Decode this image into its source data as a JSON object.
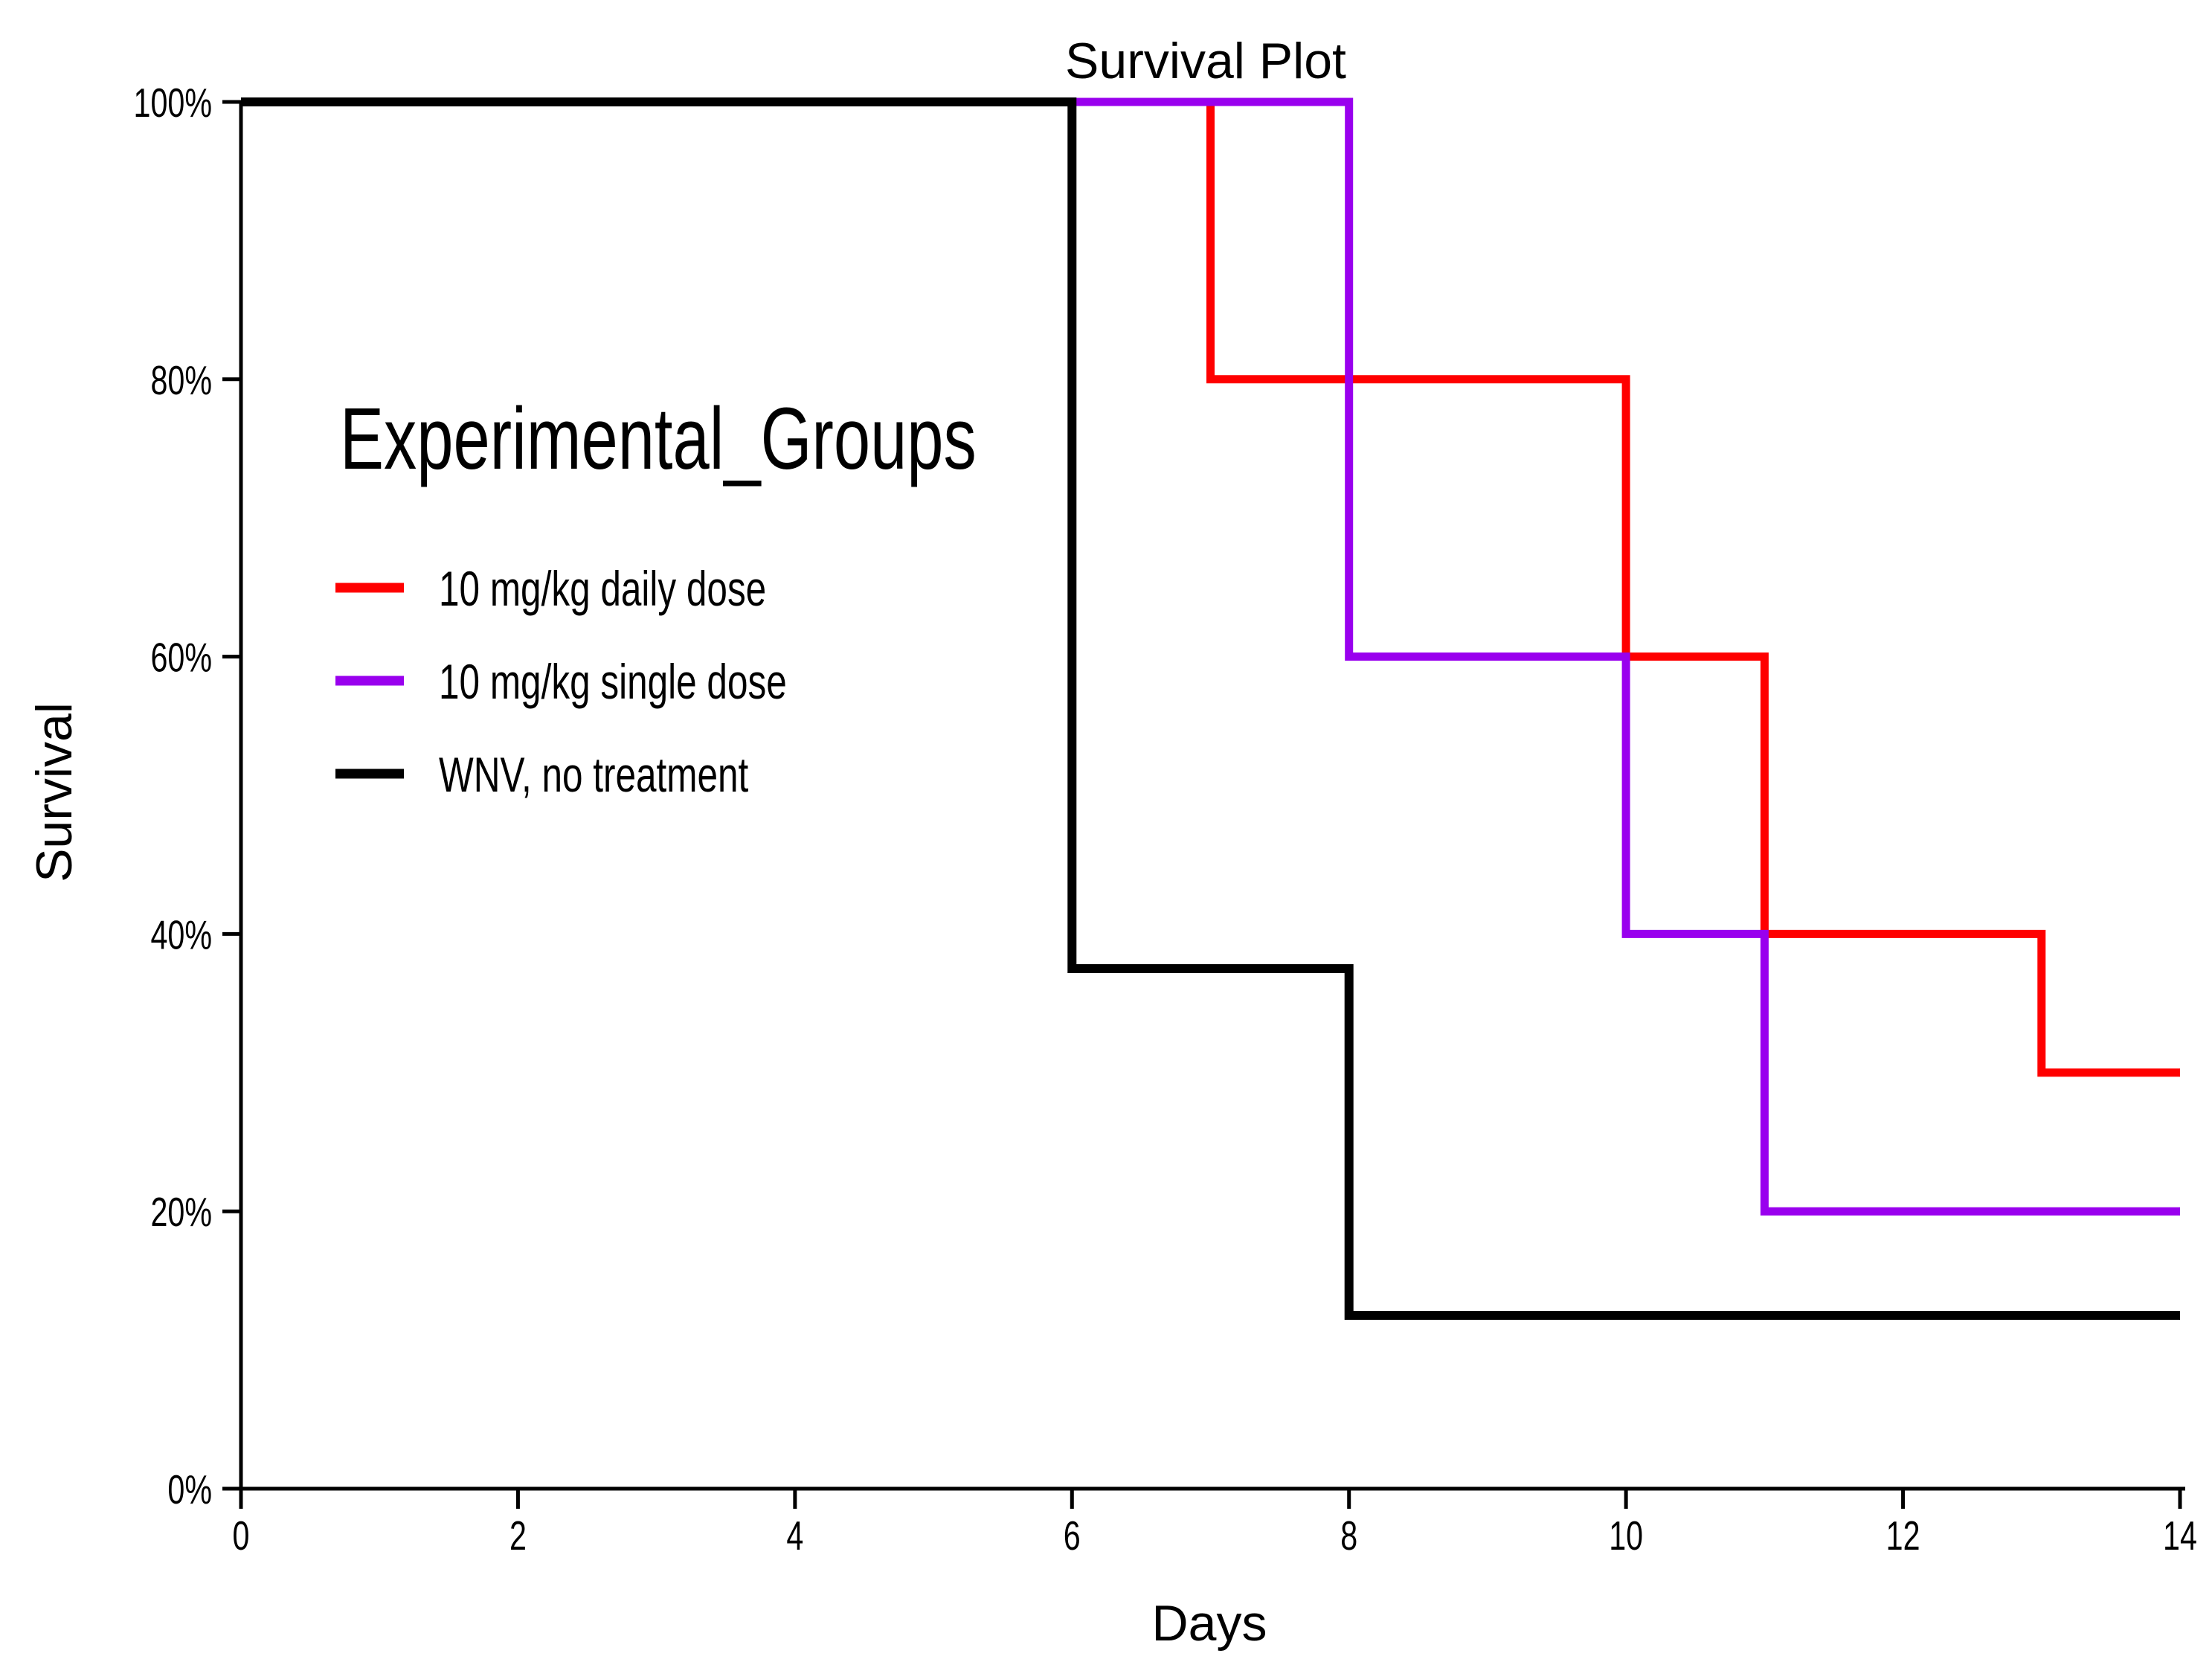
{
  "page": {
    "background": "#FFFFFF"
  },
  "chart_data": {
    "type": "line",
    "subtype": "kaplan-meier-step-survival",
    "title": "Survival Plot",
    "xlabel": "Days",
    "ylabel": "Survival",
    "xlim": [
      0,
      14
    ],
    "ylim_pct": [
      0,
      100
    ],
    "x_ticks": [
      0,
      2,
      4,
      6,
      8,
      10,
      12,
      14
    ],
    "y_ticks_pct": [
      0,
      20,
      40,
      60,
      80,
      100
    ],
    "y_tick_suffix": "%",
    "grid": false,
    "legend": {
      "title": "Experimental_Groups",
      "position": "upper-left-inside"
    },
    "series": [
      {
        "name": "10 mg/kg daily dose",
        "color": "#FF0000",
        "points_day_pct": [
          [
            0,
            100
          ],
          [
            7,
            100
          ],
          [
            7,
            80
          ],
          [
            10,
            80
          ],
          [
            10,
            60
          ],
          [
            11,
            60
          ],
          [
            11,
            40
          ],
          [
            13,
            40
          ],
          [
            13,
            30
          ],
          [
            14,
            30
          ]
        ]
      },
      {
        "name": "10 mg/kg single dose",
        "color": "#9900EE",
        "points_day_pct": [
          [
            0,
            100
          ],
          [
            8,
            100
          ],
          [
            8,
            60
          ],
          [
            10,
            60
          ],
          [
            10,
            40
          ],
          [
            11,
            40
          ],
          [
            11,
            20
          ],
          [
            14,
            20
          ]
        ]
      },
      {
        "name": "WNV, no treatment",
        "color": "#000000",
        "points_day_pct": [
          [
            0,
            100
          ],
          [
            6,
            100
          ],
          [
            6,
            37.5
          ],
          [
            8,
            37.5
          ],
          [
            8,
            12.5
          ],
          [
            14,
            12.5
          ]
        ]
      }
    ]
  }
}
